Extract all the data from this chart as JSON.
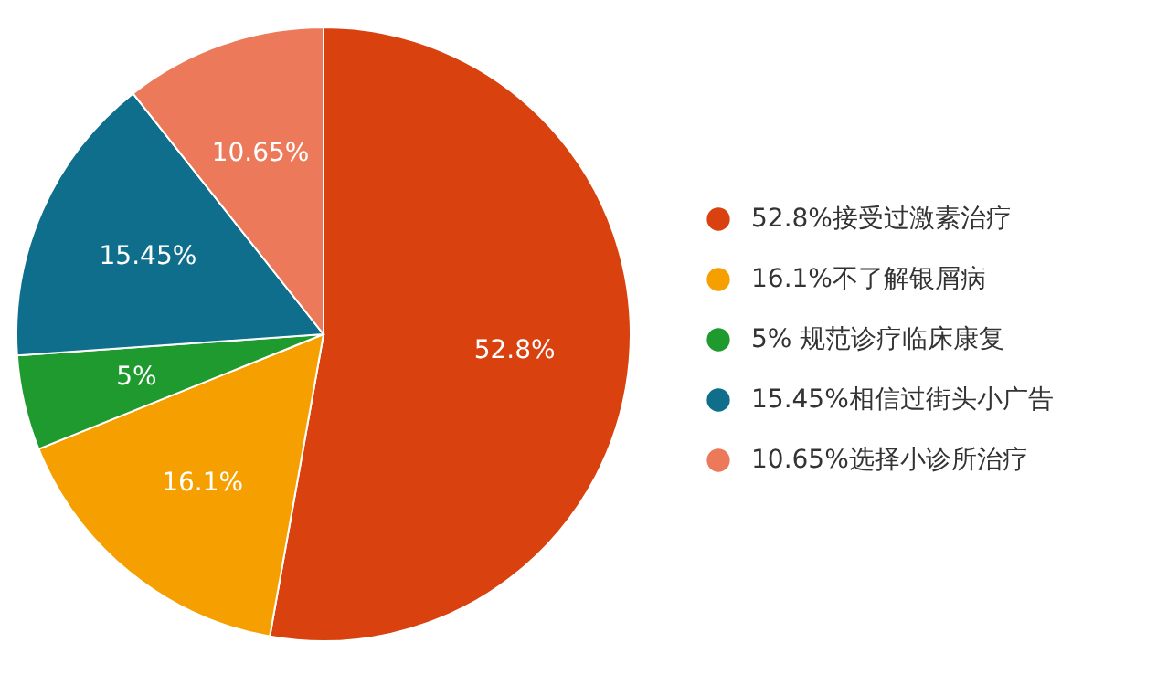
{
  "chart_data": {
    "type": "pie",
    "categories": [
      "52.8%接受过激素治疗",
      "16.1%不了解银屑病",
      "5% 规范诊疗临床康复",
      "15.45%相信过街头小广告",
      "10.65%选择小诊所治疗"
    ],
    "values": [
      52.8,
      16.1,
      5,
      15.45,
      10.65
    ],
    "colors": [
      "#d9410f",
      "#f5a000",
      "#1e9a2e",
      "#0e6e8c",
      "#ec7a5a"
    ],
    "value_labels": [
      "52.8%",
      "16.1%",
      "5%",
      "15.45%",
      "10.65%"
    ],
    "legend": "right"
  }
}
